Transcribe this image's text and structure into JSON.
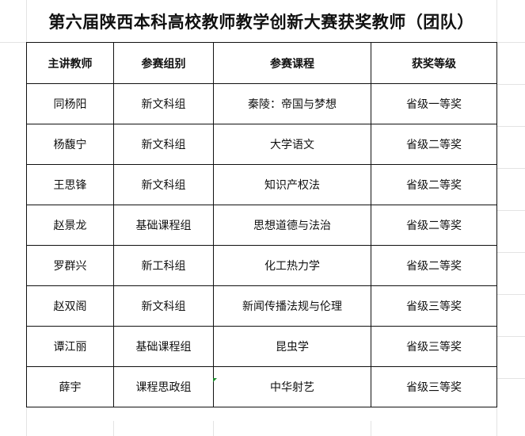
{
  "title": "第六届陕西本科高校教师教学创新大赛获奖教师（团队）",
  "table": {
    "headers": [
      "主讲教师",
      "参赛组别",
      "参赛课程",
      "获奖等级"
    ],
    "rows": [
      [
        "同杨阳",
        "新文科组",
        "秦陵：帝国与梦想",
        "省级一等奖"
      ],
      [
        "杨馥宁",
        "新文科组",
        "大学语文",
        "省级二等奖"
      ],
      [
        "王思锋",
        "新文科组",
        "知识产权法",
        "省级二等奖"
      ],
      [
        "赵景龙",
        "基础课程组",
        "思想道德与法治",
        "省级二等奖"
      ],
      [
        "罗群兴",
        "新工科组",
        "化工热力学",
        "省级二等奖"
      ],
      [
        "赵双阁",
        "新文科组",
        "新闻传播法规与伦理",
        "省级三等奖"
      ],
      [
        "谭江丽",
        "基础课程组",
        "昆虫学",
        "省级三等奖"
      ],
      [
        "薛宇",
        "课程思政组",
        "中华射艺",
        "省级三等奖"
      ]
    ]
  }
}
